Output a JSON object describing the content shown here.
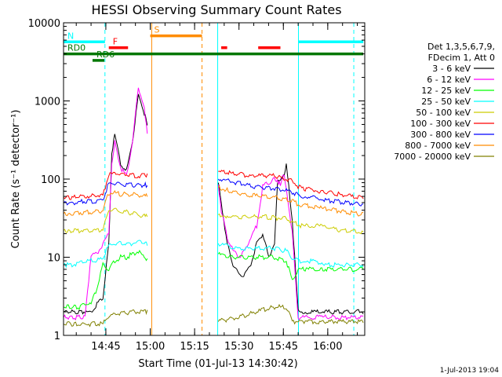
{
  "chart_data": {
    "type": "line",
    "title": "HESSI Observing Summary Count Rates",
    "xlabel": "Start Time (01-Jul-13 14:30:42)",
    "ylabel": "Count Rate (s⁻¹ detector⁻¹)",
    "yscale": "log",
    "ylim": [
      1,
      10000
    ],
    "xlim_minutes_of_day": [
      870.7,
      972.5
    ],
    "x_ticks": [
      {
        "minute": 885,
        "label": "14:45"
      },
      {
        "minute": 900,
        "label": "15:00"
      },
      {
        "minute": 915,
        "label": "15:15"
      },
      {
        "minute": 930,
        "label": "15:30"
      },
      {
        "minute": 945,
        "label": "15:45"
      },
      {
        "minute": 960,
        "label": "16:00"
      }
    ],
    "y_ticks": [
      {
        "value": 1,
        "label": "1"
      },
      {
        "value": 10,
        "label": "10"
      },
      {
        "value": 100,
        "label": "100"
      },
      {
        "value": 1000,
        "label": "1000"
      },
      {
        "value": 10000,
        "label": "10000"
      }
    ],
    "legend_header": [
      "Det 1,3,5,6,7,9,",
      "FDecim 1, Att 0"
    ],
    "series": [
      {
        "name": "3 - 6 keV",
        "color": "#000000",
        "x": [
          870.7,
          878,
          880,
          882,
          884,
          886,
          887,
          888,
          890,
          892,
          894,
          896,
          898,
          899,
          923,
          924,
          926,
          928,
          930,
          932,
          934,
          936,
          938,
          940,
          942,
          943,
          944,
          945,
          946,
          948,
          950,
          952,
          955,
          958,
          960,
          962,
          964,
          966,
          968,
          970,
          972
        ],
        "y": [
          2,
          2,
          2,
          2.5,
          3,
          15,
          200,
          400,
          150,
          130,
          300,
          1200,
          700,
          500,
          90,
          50,
          15,
          8,
          6,
          6,
          8,
          15,
          20,
          10,
          15,
          90,
          100,
          110,
          150,
          30,
          2,
          2,
          2,
          2,
          2,
          2,
          2,
          2,
          2,
          2,
          2
        ]
      },
      {
        "name": "6 - 12 keV",
        "color": "#ff00ff",
        "x": [
          870.7,
          878,
          880,
          882,
          884,
          886,
          887,
          888,
          890,
          892,
          894,
          896,
          898,
          899,
          923,
          924,
          926,
          928,
          930,
          932,
          934,
          936,
          938,
          940,
          942,
          943,
          944,
          945,
          946,
          948,
          950,
          952,
          955,
          958,
          960,
          962,
          964,
          966,
          968,
          970,
          972
        ],
        "y": [
          1.7,
          1.7,
          11,
          11,
          15,
          20,
          150,
          300,
          140,
          110,
          300,
          1500,
          800,
          400,
          85,
          40,
          18,
          12,
          10,
          12,
          18,
          25,
          80,
          90,
          100,
          95,
          85,
          120,
          80,
          20,
          1.7,
          1.7,
          1.7,
          1.7,
          1.7,
          1.7,
          1.7,
          1.7,
          1.7,
          1.7,
          1.7
        ]
      },
      {
        "name": "12 - 25 keV",
        "color": "#00ff00",
        "x": [
          870.7,
          876,
          878,
          880,
          882,
          884,
          886,
          888,
          890,
          892,
          894,
          896,
          898,
          899,
          923,
          926,
          930,
          934,
          938,
          942,
          946,
          948,
          950,
          952,
          955,
          958,
          960,
          962,
          966,
          970,
          972
        ],
        "y": [
          2.3,
          2.3,
          2.5,
          2.5,
          4,
          8,
          7,
          9,
          10,
          10,
          11,
          12,
          10,
          9,
          11,
          10,
          10,
          10,
          10,
          10,
          9,
          5,
          7,
          7,
          7,
          7,
          7,
          7,
          7,
          7,
          7
        ]
      },
      {
        "name": "25 - 50 keV",
        "color": "#00ffff",
        "x": [
          870.7,
          872,
          874,
          876,
          878,
          880,
          882,
          884,
          886,
          888,
          890,
          892,
          894,
          896,
          898,
          899,
          923,
          926,
          930,
          934,
          938,
          942,
          946,
          948,
          950,
          952,
          955,
          958,
          960,
          962,
          966,
          970,
          972
        ],
        "y": [
          8,
          8,
          8,
          8.5,
          9,
          9,
          9,
          10,
          14,
          15,
          15,
          15,
          15,
          16,
          15,
          15,
          15,
          14,
          13,
          13,
          13,
          13,
          12,
          10,
          9,
          9,
          9,
          8.5,
          8,
          8,
          8,
          8,
          8
        ]
      },
      {
        "name": "50 - 100 keV",
        "color": "#cccc00",
        "x": [
          870.7,
          874,
          878,
          880,
          882,
          884,
          886,
          888,
          890,
          892,
          894,
          896,
          898,
          899,
          923,
          926,
          930,
          934,
          938,
          942,
          946,
          948,
          950,
          952,
          955,
          958,
          960,
          962,
          966,
          970,
          972
        ],
        "y": [
          22,
          22,
          22,
          22,
          22,
          23,
          40,
          40,
          38,
          38,
          36,
          35,
          34,
          33,
          35,
          34,
          33,
          33,
          33,
          32,
          31,
          28,
          26,
          25,
          25,
          25,
          24,
          23,
          22,
          21,
          21
        ]
      },
      {
        "name": "100 - 300 keV",
        "color": "#ff0000",
        "x": [
          870.7,
          874,
          878,
          880,
          882,
          884,
          886,
          888,
          890,
          892,
          894,
          896,
          898,
          899,
          923,
          926,
          930,
          934,
          938,
          942,
          946,
          948,
          950,
          952,
          955,
          958,
          960,
          962,
          966,
          970,
          972
        ],
        "y": [
          58,
          58,
          60,
          60,
          62,
          62,
          115,
          118,
          115,
          115,
          112,
          110,
          110,
          110,
          125,
          120,
          115,
          110,
          110,
          110,
          100,
          95,
          80,
          75,
          72,
          70,
          68,
          65,
          62,
          58,
          58
        ]
      },
      {
        "name": "300 - 800 keV",
        "color": "#0000ff",
        "x": [
          870.7,
          874,
          878,
          880,
          882,
          884,
          886,
          888,
          890,
          892,
          894,
          896,
          898,
          899,
          923,
          926,
          930,
          934,
          938,
          942,
          946,
          948,
          950,
          952,
          955,
          958,
          960,
          962,
          966,
          970,
          972
        ],
        "y": [
          50,
          50,
          52,
          52,
          52,
          55,
          88,
          88,
          86,
          85,
          84,
          84,
          84,
          84,
          100,
          95,
          88,
          82,
          78,
          76,
          72,
          68,
          62,
          60,
          58,
          55,
          54,
          52,
          50,
          48,
          48
        ]
      },
      {
        "name": "800 - 7000 keV",
        "color": "#ff8c00",
        "x": [
          870.7,
          874,
          878,
          880,
          882,
          884,
          886,
          888,
          890,
          892,
          894,
          896,
          898,
          899,
          923,
          926,
          930,
          934,
          938,
          942,
          946,
          948,
          950,
          952,
          955,
          958,
          960,
          962,
          966,
          970,
          972
        ],
        "y": [
          36,
          36,
          38,
          38,
          38,
          40,
          66,
          66,
          64,
          64,
          63,
          62,
          62,
          62,
          78,
          72,
          66,
          62,
          60,
          58,
          55,
          52,
          48,
          46,
          44,
          42,
          41,
          40,
          38,
          36,
          36
        ]
      },
      {
        "name": "7000 - 20000 keV",
        "color": "#808000",
        "x": [
          870.7,
          876,
          880,
          884,
          886,
          890,
          894,
          898,
          899,
          923,
          926,
          930,
          934,
          938,
          942,
          946,
          948,
          950,
          952,
          955,
          958,
          960,
          962,
          966,
          970,
          972
        ],
        "y": [
          1.4,
          1.4,
          1.4,
          1.4,
          1.8,
          1.9,
          2.0,
          2.0,
          2.0,
          1.5,
          1.6,
          1.7,
          1.9,
          2.1,
          2.3,
          2.3,
          1.5,
          1.5,
          1.5,
          1.5,
          1.5,
          1.5,
          1.5,
          1.5,
          1.5,
          1.5
        ]
      }
    ],
    "flags": [
      {
        "label": "N",
        "color": "#00ffff",
        "level": 5700,
        "segments": [
          [
            870.7,
            884.7
          ],
          [
            950.1,
            972
          ]
        ]
      },
      {
        "label": "F",
        "color": "#ff0000",
        "level": 4800,
        "segments": [
          [
            886,
            892.5
          ],
          [
            924,
            926
          ],
          [
            936.5,
            944
          ]
        ]
      },
      {
        "label": "S",
        "color": "#ff8c00",
        "level": 6800,
        "segments": [
          [
            900,
            917.5
          ]
        ]
      },
      {
        "label": "RD6",
        "color": "#007700",
        "level": 3300,
        "segments": [
          [
            880.5,
            884.5
          ]
        ]
      },
      {
        "label": "RD0",
        "color": "#007700",
        "level": 4000,
        "segments": [
          [
            870.7,
            972
          ]
        ]
      }
    ],
    "vertical_lines": [
      {
        "minute": 870.7,
        "color": "#00ffff",
        "style": "solid"
      },
      {
        "minute": 884.7,
        "color": "#00ffff",
        "style": "dashed"
      },
      {
        "minute": 900.5,
        "color": "#ff8c00",
        "style": "solid"
      },
      {
        "minute": 917.5,
        "color": "#ff8c00",
        "style": "dashed"
      },
      {
        "minute": 922.8,
        "color": "#00ffff",
        "style": "solid"
      },
      {
        "minute": 950.1,
        "color": "#00ffff",
        "style": "solid"
      },
      {
        "minute": 968.8,
        "color": "#00ffff",
        "style": "dashed"
      }
    ],
    "footer_date": "1-Jul-2013 19:04"
  }
}
